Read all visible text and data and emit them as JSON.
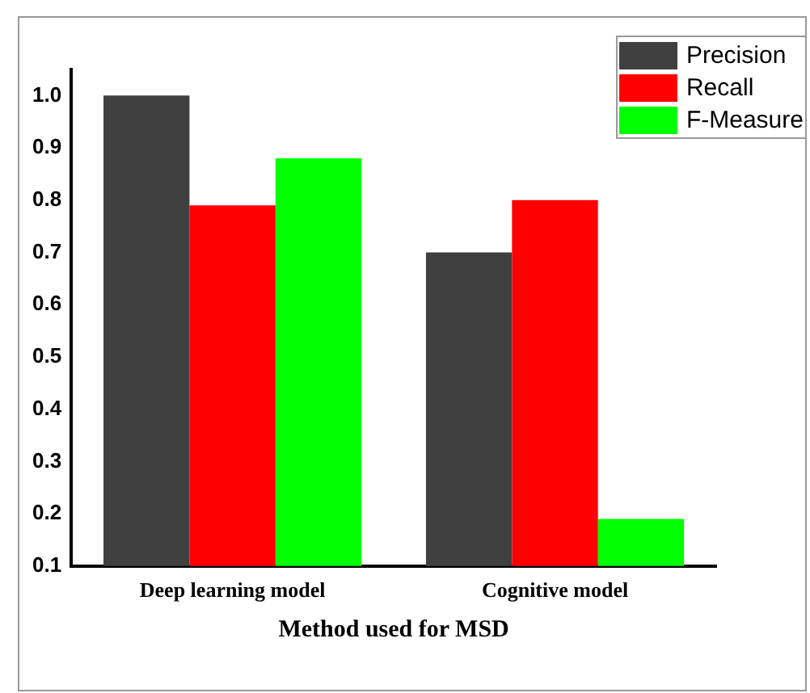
{
  "chart_data": {
    "type": "bar",
    "xlabel": "Method used for MSD",
    "categories": [
      "Deep learning model",
      "Cognitive model"
    ],
    "series": [
      {
        "name": "Precision",
        "color": "#404040",
        "values": [
          1.0,
          0.7
        ]
      },
      {
        "name": "Recall",
        "color": "#ff0000",
        "values": [
          0.79,
          0.8
        ]
      },
      {
        "name": "F-Measure",
        "color": "#00ff00",
        "values": [
          0.88,
          0.19
        ]
      }
    ],
    "ylim": [
      0.1,
      1.05
    ],
    "yticks": [
      0.1,
      0.2,
      0.3,
      0.4,
      0.5,
      0.6,
      0.7,
      0.8,
      0.9,
      {
        "value": 1.0,
        "label": "1.0"
      }
    ],
    "grid": false,
    "legend": "top right"
  }
}
